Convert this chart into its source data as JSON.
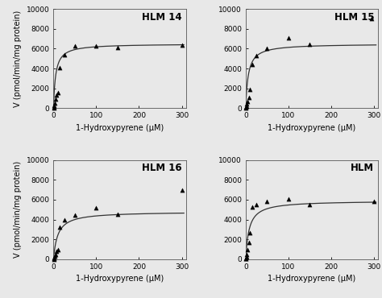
{
  "panels": [
    {
      "label": "HLM 14",
      "Vmax": 6500,
      "Km": 5,
      "data_x": [
        0.5,
        1,
        2,
        3,
        5,
        7,
        10,
        15,
        25,
        50,
        100,
        150,
        300
      ],
      "data_y": [
        50,
        150,
        300,
        500,
        900,
        1300,
        1600,
        4100,
        5400,
        6250,
        6250,
        6100,
        6350
      ]
    },
    {
      "label": "HLM 15",
      "Vmax": 6500,
      "Km": 6,
      "data_x": [
        0.5,
        1,
        2,
        3,
        5,
        7,
        10,
        15,
        25,
        50,
        100,
        150,
        295
      ],
      "data_y": [
        50,
        100,
        200,
        400,
        700,
        1100,
        1900,
        4400,
        5300,
        6050,
        7100,
        6450,
        9000
      ]
    },
    {
      "label": "HLM 16",
      "Vmax": 4800,
      "Km": 10,
      "data_x": [
        0.5,
        1,
        2,
        3,
        5,
        7,
        10,
        15,
        25,
        50,
        100,
        150,
        300
      ],
      "data_y": [
        30,
        70,
        150,
        300,
        500,
        800,
        1000,
        3200,
        4000,
        4450,
        5200,
        4500,
        6950
      ]
    },
    {
      "label": "HLM",
      "Vmax": 5900,
      "Km": 8,
      "data_x": [
        0.5,
        1,
        2,
        3,
        5,
        7,
        10,
        15,
        25,
        50,
        100,
        150,
        300
      ],
      "data_y": [
        50,
        100,
        250,
        500,
        1000,
        1700,
        2700,
        5300,
        5500,
        5800,
        6100,
        5500,
        5800
      ]
    }
  ],
  "xlim": [
    0,
    310
  ],
  "ylim": [
    0,
    10000
  ],
  "xticks": [
    0,
    100,
    200,
    300
  ],
  "yticks": [
    0,
    2000,
    4000,
    6000,
    8000,
    10000
  ],
  "xlabel": "1-Hydroxypyrene (μM)",
  "ylabel": "V (pmol/min/mg protein)",
  "background_color": "#e8e8e8",
  "line_color": "#333333",
  "marker_color": "#000000",
  "label_fontsize": 7,
  "tick_fontsize": 6.5,
  "title_fontsize": 8.5
}
